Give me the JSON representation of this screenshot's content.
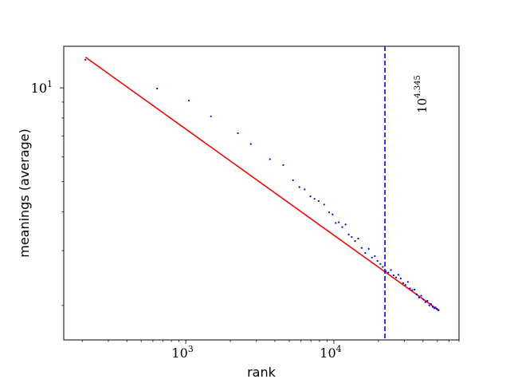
{
  "chart_data": {
    "type": "scatter",
    "xlabel": "rank",
    "ylabel": "meanings (average)",
    "x_scale": "log",
    "y_scale": "log",
    "xlim": [
      150,
      70000
    ],
    "ylim": [
      1.55,
      13.6
    ],
    "x_major_ticks": [
      {
        "value": 1000,
        "base": "10",
        "exp": "3"
      },
      {
        "value": 10000,
        "base": "10",
        "exp": "4"
      }
    ],
    "y_major_ticks": [
      {
        "value": 10,
        "base": "10",
        "exp": "1"
      }
    ],
    "grid": false,
    "points": {
      "color": "#0000ff",
      "x": [
        210,
        640,
        1050,
        1480,
        2250,
        2750,
        3700,
        4550,
        5300,
        5850,
        6350,
        6950,
        7400,
        7900,
        8600,
        9300,
        9800,
        10300,
        10800,
        11400,
        12000,
        12600,
        13200,
        13900,
        14600,
        15400,
        16300,
        17200,
        18100,
        18900,
        19700,
        20600,
        21400,
        22400,
        23300,
        24300,
        25300,
        26300,
        27300,
        28300,
        29400,
        30500,
        31600,
        32700,
        33800,
        35000,
        36300,
        37600,
        38900,
        40200,
        41500,
        42800,
        44100,
        45300,
        46500,
        47600,
        48600,
        49500,
        50300,
        51000
      ],
      "y": [
        12.3,
        9.95,
        9.1,
        8.1,
        7.15,
        6.6,
        5.9,
        5.65,
        5.05,
        4.8,
        4.72,
        4.48,
        4.4,
        4.33,
        4.22,
        3.98,
        3.92,
        3.68,
        3.7,
        3.57,
        3.64,
        3.38,
        3.32,
        3.22,
        3.28,
        3.06,
        2.95,
        3.04,
        2.85,
        2.88,
        2.78,
        2.72,
        2.66,
        2.58,
        2.55,
        2.6,
        2.5,
        2.46,
        2.51,
        2.44,
        2.36,
        2.33,
        2.38,
        2.27,
        2.24,
        2.25,
        2.17,
        2.12,
        2.15,
        2.09,
        2.05,
        2.07,
        2.0,
        2.02,
        1.98,
        1.96,
        1.97,
        1.95,
        1.94,
        1.93
      ]
    },
    "fit_line": {
      "color": "#ff0000",
      "x": [
        210,
        51000
      ],
      "y": [
        12.55,
        1.93
      ]
    },
    "vline": {
      "x": 22130,
      "color": "#0000ff",
      "style": "dashed",
      "label_base": "10",
      "label_exp": "4.345"
    }
  }
}
